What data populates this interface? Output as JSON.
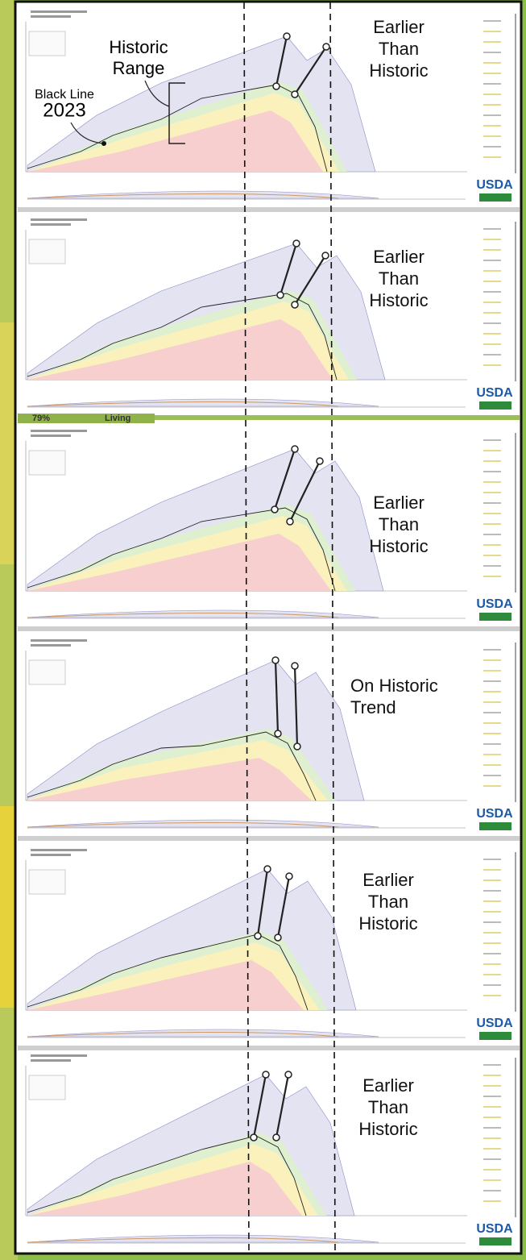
{
  "annotations": {
    "historic_range": [
      "Historic",
      "Range"
    ],
    "black_line": "Black Line",
    "year": "2023"
  },
  "panels": [
    {
      "label": [
        "Earlier",
        "Than",
        "Historic"
      ],
      "logo": "USDA"
    },
    {
      "label": [
        "Earlier",
        "Than",
        "Historic"
      ],
      "logo": "USDA"
    },
    {
      "label": [
        "Earlier",
        "Than",
        "Historic"
      ],
      "logo": "USDA"
    },
    {
      "label": [
        "On Historic",
        "Trend"
      ],
      "logo": "USDA"
    },
    {
      "label": [
        "Earlier",
        "Than",
        "Historic"
      ],
      "logo": "USDA"
    },
    {
      "label": [
        "Earlier",
        "Than",
        "Historic"
      ],
      "logo": "USDA"
    }
  ],
  "footer": {
    "percent": "79%",
    "word": "Living"
  }
}
